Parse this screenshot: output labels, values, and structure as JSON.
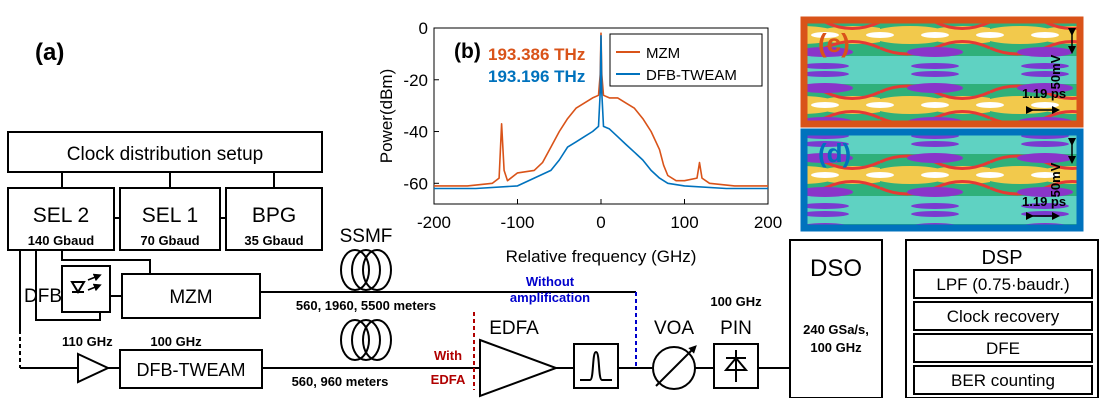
{
  "panel_labels": {
    "a": "(a)",
    "b": "(b)",
    "c": "(c)",
    "d": "(d)"
  },
  "setup": {
    "clock": "Clock distribution setup",
    "sel2": {
      "name": "SEL 2",
      "rate": "140 Gbaud"
    },
    "sel1": {
      "name": "SEL 1",
      "rate": "70 Gbaud"
    },
    "bpg": {
      "name": "BPG",
      "rate": "35 Gbaud"
    },
    "dfb": "DFB",
    "mzm": "MZM",
    "dfb_tweam": "DFB-TWEAM",
    "amp_bw": "110 GHz",
    "tweam_bw": "100 GHz",
    "ssmf": "SSMF",
    "fiber_mzm": "560, 1960, 5500 meters",
    "fiber_tweam": "560, 960 meters",
    "without_amp_1": "Without",
    "without_amp_2": "amplification",
    "with_edfa_1": "With",
    "with_edfa_2": "EDFA",
    "edfa": "EDFA",
    "voa": "VOA",
    "pin_bw": "100 GHz",
    "pin": "PIN",
    "dso": "DSO",
    "dso_spec_1": "240 GSa/s,",
    "dso_spec_2": "100 GHz",
    "dsp": "DSP",
    "dsp_blocks": [
      "LPF (0.75·baudr.)",
      "Clock recovery",
      "DFE",
      "BER counting"
    ]
  },
  "colors": {
    "mzm": "#d95319",
    "tweam": "#0072bd",
    "with_edfa": "#b00000",
    "without_amp": "#0000cc"
  },
  "chart_data": {
    "type": "line",
    "xlabel": "Relative frequency (GHz)",
    "ylabel": "Power(dBm)",
    "xlim": [
      -200,
      200
    ],
    "ylim": [
      -68,
      0
    ],
    "xticks": [
      "-200",
      "-100",
      "0",
      "100",
      "200"
    ],
    "yticks": [
      "0",
      "-20",
      "-40",
      "-60"
    ],
    "legend": [
      "MZM",
      "DFB-TWEAM"
    ],
    "legend_position": "top-right",
    "annotations": [
      "193.386 THz",
      "193.196 THz"
    ],
    "series": [
      {
        "name": "MZM",
        "x": [
          -200,
          -160,
          -130,
          -122,
          -119,
          -116,
          -112,
          -100,
          -80,
          -70,
          -60,
          -50,
          -40,
          -30,
          -20,
          -10,
          -3,
          -1,
          0,
          1,
          3,
          10,
          20,
          30,
          40,
          50,
          60,
          70,
          75,
          80,
          90,
          100,
          115,
          118,
          121,
          130,
          160,
          200
        ],
        "y": [
          -61,
          -61,
          -60,
          -58,
          -37,
          -55,
          -59,
          -56,
          -55,
          -52,
          -46,
          -40,
          -35,
          -31,
          -29,
          -27,
          -26,
          -18,
          -2,
          -18,
          -26,
          -27,
          -27,
          -29,
          -31,
          -35,
          -40,
          -47,
          -53,
          -57,
          -59,
          -59,
          -58,
          -52,
          -58,
          -60,
          -61,
          -61
        ]
      },
      {
        "name": "DFB-TWEAM",
        "x": [
          -200,
          -150,
          -100,
          -80,
          -60,
          -50,
          -40,
          -30,
          -20,
          -10,
          -3,
          -1,
          0,
          1,
          3,
          10,
          20,
          30,
          40,
          50,
          60,
          70,
          80,
          100,
          150,
          200
        ],
        "y": [
          -62,
          -62,
          -61,
          -58,
          -55,
          -51,
          -46,
          -44,
          -42,
          -40,
          -38,
          -25,
          -3,
          -25,
          -38,
          -39,
          -42,
          -45,
          -48,
          -51,
          -55,
          -58,
          -60,
          -61,
          -62,
          -62
        ]
      }
    ]
  },
  "eyes": {
    "c": {
      "volt": "50mV",
      "time": "1.19 ps"
    },
    "d": {
      "volt": "50mV",
      "time": "1.19 ps"
    }
  }
}
